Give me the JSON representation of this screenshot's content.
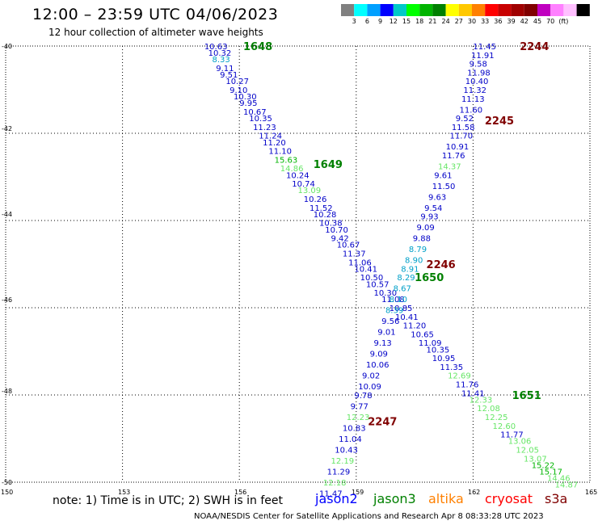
{
  "header": {
    "title": "12:00 – 23:59 UTC 04/06/2023",
    "subtitle": "12 hour collection of altimeter wave heights"
  },
  "legend": {
    "colors": [
      "#808080",
      "#00ffff",
      "#00a0ff",
      "#0000ff",
      "#00c8c8",
      "#00ff00",
      "#00b400",
      "#008000",
      "#ffff00",
      "#ffc800",
      "#ff8000",
      "#ff0000",
      "#c80000",
      "#a00000",
      "#800000",
      "#c000c0",
      "#ff80ff",
      "#ffc0ff",
      "#000000"
    ],
    "labels": [
      "3",
      "6",
      "9",
      "12",
      "15",
      "18",
      "21",
      "24",
      "27",
      "30",
      "33",
      "36",
      "39",
      "42",
      "45",
      "70",
      "(ft)"
    ]
  },
  "axes": {
    "y_labels": [
      "-40",
      "-42",
      "-44",
      "-46",
      "-48",
      "-50"
    ],
    "x_labels": [
      "150",
      "153",
      "156",
      "159",
      "162",
      "165"
    ]
  },
  "note": "note:  1) Time is in UTC; 2) SWH is in feet",
  "satellites": [
    {
      "name": "jason2",
      "color": "#0000ff"
    },
    {
      "name": "jason3",
      "color": "#008000"
    },
    {
      "name": "altika",
      "color": "#ff8000"
    },
    {
      "name": "cryosat",
      "color": "#ff0000"
    },
    {
      "name": "s3a",
      "color": "#800000"
    }
  ],
  "footer": "NOAA/NESDIS Center for Satellite Applications and Research    Apr  8 08:33:28 UTC 2023",
  "chart_data": {
    "type": "scatter",
    "x_range": [
      150,
      165
    ],
    "y_range": [
      -50,
      -40
    ],
    "track_times": [
      {
        "label": "1648",
        "color": "#008000",
        "lon": 156.1,
        "lat": -40.0
      },
      {
        "label": "1649",
        "color": "#008000",
        "lon": 157.9,
        "lat": -42.7
      },
      {
        "label": "1650",
        "color": "#008000",
        "lon": 160.5,
        "lat": -45.3
      },
      {
        "label": "1651",
        "color": "#008000",
        "lon": 163.0,
        "lat": -48.0
      },
      {
        "label": "2244",
        "color": "#800000",
        "lon": 163.2,
        "lat": -40.0
      },
      {
        "label": "2245",
        "color": "#800000",
        "lon": 162.3,
        "lat": -41.7
      },
      {
        "label": "2246",
        "color": "#800000",
        "lon": 160.8,
        "lat": -45.0
      },
      {
        "label": "2247",
        "color": "#800000",
        "lon": 159.3,
        "lat": -48.6
      }
    ],
    "points": [
      {
        "t": "10.63",
        "c": "#0000c8",
        "lon": 155.1,
        "lat": -40.0
      },
      {
        "t": "10.32",
        "c": "#0000c8",
        "lon": 155.2,
        "lat": -40.15
      },
      {
        "t": "8.33",
        "c": "#00a0c8",
        "lon": 155.3,
        "lat": -40.3
      },
      {
        "t": "9.11",
        "c": "#0000c8",
        "lon": 155.4,
        "lat": -40.5
      },
      {
        "t": "9.51",
        "c": "#0000c8",
        "lon": 155.5,
        "lat": -40.65
      },
      {
        "t": "10.27",
        "c": "#0000c8",
        "lon": 155.65,
        "lat": -40.8
      },
      {
        "t": "9.10",
        "c": "#0000c8",
        "lon": 155.75,
        "lat": -41.0
      },
      {
        "t": "10.30",
        "c": "#0000c8",
        "lon": 155.85,
        "lat": -41.15
      },
      {
        "t": "9.95",
        "c": "#0000c8",
        "lon": 156.0,
        "lat": -41.3
      },
      {
        "t": "10.67",
        "c": "#0000c8",
        "lon": 156.1,
        "lat": -41.5
      },
      {
        "t": "10.35",
        "c": "#0000c8",
        "lon": 156.25,
        "lat": -41.65
      },
      {
        "t": "11.23",
        "c": "#0000c8",
        "lon": 156.35,
        "lat": -41.85
      },
      {
        "t": "11.24",
        "c": "#0000c8",
        "lon": 156.5,
        "lat": -42.05
      },
      {
        "t": "11.20",
        "c": "#0000c8",
        "lon": 156.6,
        "lat": -42.2
      },
      {
        "t": "11.10",
        "c": "#0000c8",
        "lon": 156.75,
        "lat": -42.4
      },
      {
        "t": "15.63",
        "c": "#00b400",
        "lon": 156.9,
        "lat": -42.6
      },
      {
        "t": "14.86",
        "c": "#66e666",
        "lon": 157.05,
        "lat": -42.8
      },
      {
        "t": "10.24",
        "c": "#0000c8",
        "lon": 157.2,
        "lat": -42.95
      },
      {
        "t": "10.74",
        "c": "#0000c8",
        "lon": 157.35,
        "lat": -43.15
      },
      {
        "t": "13.09",
        "c": "#66e666",
        "lon": 157.5,
        "lat": -43.3
      },
      {
        "t": "10.26",
        "c": "#0000c8",
        "lon": 157.65,
        "lat": -43.5
      },
      {
        "t": "11.52",
        "c": "#0000c8",
        "lon": 157.8,
        "lat": -43.7
      },
      {
        "t": "10.28",
        "c": "#0000c8",
        "lon": 157.9,
        "lat": -43.85
      },
      {
        "t": "10.38",
        "c": "#0000c8",
        "lon": 158.05,
        "lat": -44.05
      },
      {
        "t": "10.70",
        "c": "#0000c8",
        "lon": 158.2,
        "lat": -44.2
      },
      {
        "t": "9.42",
        "c": "#0000c8",
        "lon": 158.35,
        "lat": -44.4
      },
      {
        "t": "10.67",
        "c": "#0000c8",
        "lon": 158.5,
        "lat": -44.55
      },
      {
        "t": "11.37",
        "c": "#0000c8",
        "lon": 158.65,
        "lat": -44.75
      },
      {
        "t": "11.06",
        "c": "#0000c8",
        "lon": 158.8,
        "lat": -44.95
      },
      {
        "t": "10.41",
        "c": "#0000c8",
        "lon": 158.95,
        "lat": -45.1
      },
      {
        "t": "10.50",
        "c": "#0000c8",
        "lon": 159.1,
        "lat": -45.3
      },
      {
        "t": "10.57",
        "c": "#0000c8",
        "lon": 159.25,
        "lat": -45.45
      },
      {
        "t": "10.30",
        "c": "#0000c8",
        "lon": 159.45,
        "lat": -45.65
      },
      {
        "t": "11.08",
        "c": "#0000c8",
        "lon": 159.65,
        "lat": -45.8
      },
      {
        "t": "10.85",
        "c": "#0000c8",
        "lon": 159.85,
        "lat": -46.0
      },
      {
        "t": "10.41",
        "c": "#0000c8",
        "lon": 160.0,
        "lat": -46.2
      },
      {
        "t": "11.20",
        "c": "#0000c8",
        "lon": 160.2,
        "lat": -46.4
      },
      {
        "t": "10.65",
        "c": "#0000c8",
        "lon": 160.4,
        "lat": -46.6
      },
      {
        "t": "11.09",
        "c": "#0000c8",
        "lon": 160.6,
        "lat": -46.8
      },
      {
        "t": "10.35",
        "c": "#0000c8",
        "lon": 160.8,
        "lat": -46.95
      },
      {
        "t": "10.95",
        "c": "#0000c8",
        "lon": 160.95,
        "lat": -47.15
      },
      {
        "t": "11.35",
        "c": "#0000c8",
        "lon": 161.15,
        "lat": -47.35
      },
      {
        "t": "12.69",
        "c": "#66e666",
        "lon": 161.35,
        "lat": -47.55
      },
      {
        "t": "11.76",
        "c": "#0000c8",
        "lon": 161.55,
        "lat": -47.75
      },
      {
        "t": "11.41",
        "c": "#0000c8",
        "lon": 161.7,
        "lat": -47.95
      },
      {
        "t": "12.33",
        "c": "#66e666",
        "lon": 161.9,
        "lat": -48.1
      },
      {
        "t": "12.08",
        "c": "#66e666",
        "lon": 162.1,
        "lat": -48.3
      },
      {
        "t": "12.25",
        "c": "#66e666",
        "lon": 162.3,
        "lat": -48.5
      },
      {
        "t": "12.60",
        "c": "#66e666",
        "lon": 162.5,
        "lat": -48.7
      },
      {
        "t": "11.77",
        "c": "#0000c8",
        "lon": 162.7,
        "lat": -48.9
      },
      {
        "t": "13.06",
        "c": "#66e666",
        "lon": 162.9,
        "lat": -49.05
      },
      {
        "t": "12.05",
        "c": "#66e666",
        "lon": 163.1,
        "lat": -49.25
      },
      {
        "t": "13.07",
        "c": "#66e666",
        "lon": 163.3,
        "lat": -49.45
      },
      {
        "t": "15.22",
        "c": "#00b400",
        "lon": 163.5,
        "lat": -49.6
      },
      {
        "t": "15.17",
        "c": "#00b400",
        "lon": 163.7,
        "lat": -49.75
      },
      {
        "t": "14.46",
        "c": "#66e666",
        "lon": 163.9,
        "lat": -49.9
      },
      {
        "t": "14.87",
        "c": "#66e666",
        "lon": 164.1,
        "lat": -50.05
      },
      {
        "t": "11.45",
        "c": "#0000c8",
        "lon": 162.0,
        "lat": -40.0
      },
      {
        "t": "11.91",
        "c": "#0000c8",
        "lon": 161.95,
        "lat": -40.2
      },
      {
        "t": "9.58",
        "c": "#0000c8",
        "lon": 161.9,
        "lat": -40.4
      },
      {
        "t": "11.98",
        "c": "#0000c8",
        "lon": 161.85,
        "lat": -40.6
      },
      {
        "t": "10.40",
        "c": "#0000c8",
        "lon": 161.8,
        "lat": -40.8
      },
      {
        "t": "11.32",
        "c": "#0000c8",
        "lon": 161.75,
        "lat": -41.0
      },
      {
        "t": "11.13",
        "c": "#0000c8",
        "lon": 161.7,
        "lat": -41.2
      },
      {
        "t": "11.60",
        "c": "#0000c8",
        "lon": 161.65,
        "lat": -41.45
      },
      {
        "t": "9.52",
        "c": "#0000c8",
        "lon": 161.55,
        "lat": -41.65
      },
      {
        "t": "11.58",
        "c": "#0000c8",
        "lon": 161.45,
        "lat": -41.85
      },
      {
        "t": "11.70",
        "c": "#0000c8",
        "lon": 161.4,
        "lat": -42.05
      },
      {
        "t": "10.91",
        "c": "#0000c8",
        "lon": 161.3,
        "lat": -42.3
      },
      {
        "t": "11.76",
        "c": "#0000c8",
        "lon": 161.2,
        "lat": -42.5
      },
      {
        "t": "14.37",
        "c": "#66e666",
        "lon": 161.1,
        "lat": -42.75
      },
      {
        "t": "9.61",
        "c": "#0000c8",
        "lon": 161.0,
        "lat": -42.95
      },
      {
        "t": "11.50",
        "c": "#0000c8",
        "lon": 160.95,
        "lat": -43.2
      },
      {
        "t": "9.63",
        "c": "#0000c8",
        "lon": 160.85,
        "lat": -43.45
      },
      {
        "t": "9.54",
        "c": "#0000c8",
        "lon": 160.75,
        "lat": -43.7
      },
      {
        "t": "9.93",
        "c": "#0000c8",
        "lon": 160.65,
        "lat": -43.9
      },
      {
        "t": "9.09",
        "c": "#0000c8",
        "lon": 160.55,
        "lat": -44.15
      },
      {
        "t": "9.88",
        "c": "#0000c8",
        "lon": 160.45,
        "lat": -44.4
      },
      {
        "t": "8.79",
        "c": "#00a0c8",
        "lon": 160.35,
        "lat": -44.65
      },
      {
        "t": "8.90",
        "c": "#00a0c8",
        "lon": 160.25,
        "lat": -44.9
      },
      {
        "t": "8.91",
        "c": "#00a0c8",
        "lon": 160.15,
        "lat": -45.1
      },
      {
        "t": "8.29",
        "c": "#00a0c8",
        "lon": 160.05,
        "lat": -45.3
      },
      {
        "t": "8.67",
        "c": "#00a0c8",
        "lon": 159.95,
        "lat": -45.55
      },
      {
        "t": "8.10",
        "c": "#00a0c8",
        "lon": 159.85,
        "lat": -45.8
      },
      {
        "t": "8.39",
        "c": "#00a0c8",
        "lon": 159.75,
        "lat": -46.05
      },
      {
        "t": "9.56",
        "c": "#0000c8",
        "lon": 159.65,
        "lat": -46.3
      },
      {
        "t": "9.01",
        "c": "#0000c8",
        "lon": 159.55,
        "lat": -46.55
      },
      {
        "t": "9.13",
        "c": "#0000c8",
        "lon": 159.45,
        "lat": -46.8
      },
      {
        "t": "9.09",
        "c": "#0000c8",
        "lon": 159.35,
        "lat": -47.05
      },
      {
        "t": "10.06",
        "c": "#0000c8",
        "lon": 159.25,
        "lat": -47.3
      },
      {
        "t": "9.02",
        "c": "#0000c8",
        "lon": 159.15,
        "lat": -47.55
      },
      {
        "t": "10.09",
        "c": "#0000c8",
        "lon": 159.05,
        "lat": -47.8
      },
      {
        "t": "9.78",
        "c": "#0000c8",
        "lon": 158.95,
        "lat": -48.0
      },
      {
        "t": "9.77",
        "c": "#0000c8",
        "lon": 158.85,
        "lat": -48.25
      },
      {
        "t": "12.23",
        "c": "#66e666",
        "lon": 158.75,
        "lat": -48.5
      },
      {
        "t": "10.83",
        "c": "#0000c8",
        "lon": 158.65,
        "lat": -48.75
      },
      {
        "t": "11.04",
        "c": "#0000c8",
        "lon": 158.55,
        "lat": -49.0
      },
      {
        "t": "10.43",
        "c": "#0000c8",
        "lon": 158.45,
        "lat": -49.25
      },
      {
        "t": "12.19",
        "c": "#66e666",
        "lon": 158.35,
        "lat": -49.5
      },
      {
        "t": "11.29",
        "c": "#0000c8",
        "lon": 158.25,
        "lat": -49.75
      },
      {
        "t": "12.18",
        "c": "#66e666",
        "lon": 158.15,
        "lat": -50.0
      },
      {
        "t": "11.47",
        "c": "#0000c8",
        "lon": 158.05,
        "lat": -50.25
      }
    ]
  }
}
